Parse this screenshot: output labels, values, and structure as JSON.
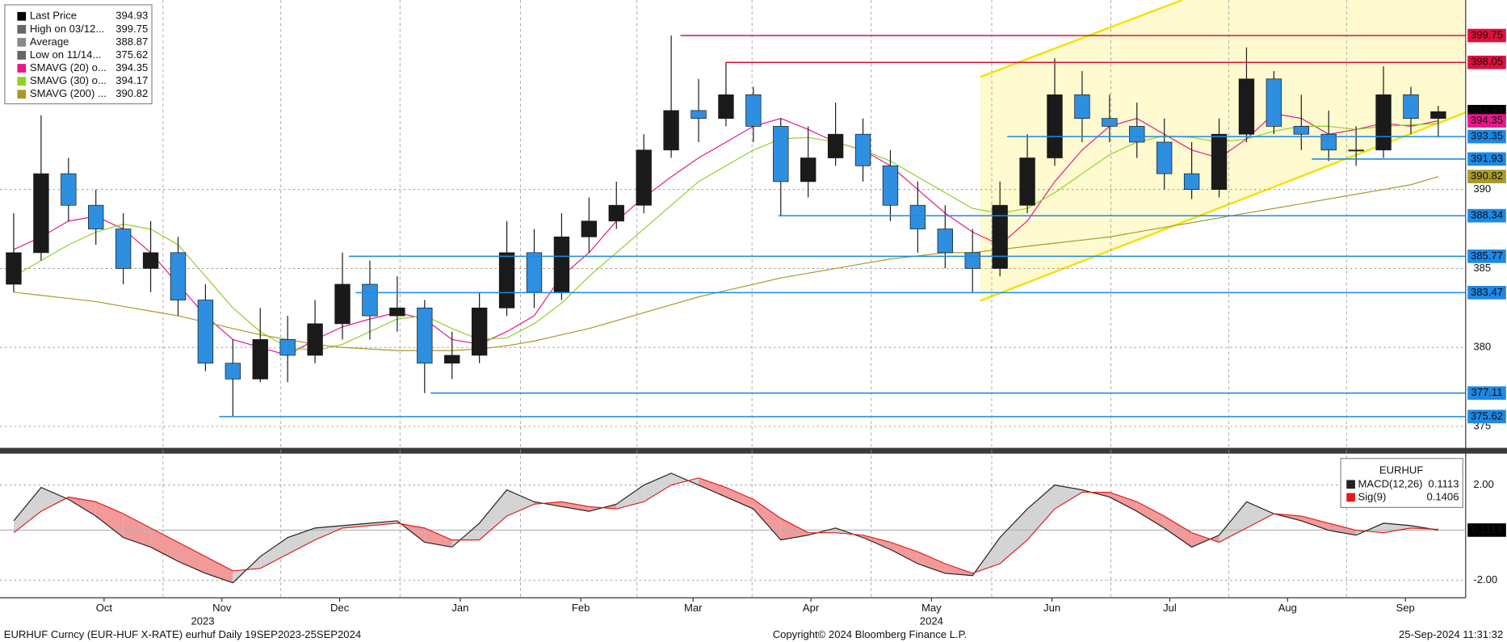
{
  "chart_data": [
    {
      "type": "candlestick",
      "open": [
        384,
        386,
        391,
        389,
        387.5,
        385,
        386,
        383,
        379,
        378,
        380.5,
        379.5,
        381.5,
        384,
        382,
        382.5,
        379,
        379.5,
        382.5,
        386,
        383.5,
        387,
        388,
        389,
        392.5,
        395,
        394.5,
        396,
        394,
        390.5,
        392,
        393.5,
        391.5,
        389,
        387.5,
        386,
        385,
        389,
        392,
        396,
        394.5,
        394,
        393,
        391,
        390,
        393.5,
        397,
        394,
        393.5,
        392.5,
        392.5,
        396,
        394.5
      ],
      "high": [
        388.5,
        394.7,
        392,
        390,
        388.5,
        388,
        387,
        384,
        380.5,
        382.5,
        382,
        383,
        386,
        385.5,
        384.5,
        383,
        381,
        383.5,
        388,
        387.5,
        388.5,
        389.5,
        390.5,
        393.5,
        399.75,
        397,
        398.05,
        396.5,
        394.5,
        394,
        395.5,
        394.5,
        392.5,
        390.5,
        389,
        387.5,
        390.5,
        393.5,
        398.3,
        397.5,
        396,
        395.5,
        394.5,
        393,
        394.5,
        399,
        397.5,
        396,
        395,
        394,
        397.8,
        396.5,
        395.3
      ],
      "low": [
        383.5,
        385.5,
        388,
        386.5,
        384,
        383.5,
        382,
        378.5,
        375.62,
        377.8,
        377.8,
        379,
        380.5,
        380.5,
        381,
        377.11,
        378,
        379,
        382,
        382.5,
        383,
        386,
        387.5,
        388.5,
        392,
        393,
        394,
        393,
        388.34,
        389.5,
        391.5,
        390.5,
        388,
        386,
        385,
        383.47,
        384.5,
        388.5,
        391.5,
        393,
        393,
        392,
        390,
        389.4,
        389.5,
        393,
        393.5,
        392.5,
        391.8,
        391.5,
        392,
        393.5,
        393.3
      ],
      "close": [
        386,
        391,
        389,
        387.5,
        385,
        386,
        383,
        379,
        378,
        380.5,
        379.5,
        381.5,
        384,
        382,
        382.5,
        379,
        379.5,
        382.5,
        386,
        383.5,
        387,
        388,
        389,
        392.5,
        395,
        394.5,
        396,
        394,
        390.5,
        392,
        393.5,
        391.5,
        389,
        387.5,
        386,
        385,
        389,
        392,
        396,
        394.5,
        394,
        393,
        391,
        390,
        393.5,
        397,
        394,
        393.5,
        392.5,
        392.5,
        396,
        394.5,
        394.93
      ],
      "up_color": "#1a1a1a",
      "down_color": "#2e8fe0",
      "series": [
        {
          "color": "#e8178a",
          "values": [
            386.2,
            387,
            388,
            388.3,
            387.5,
            386,
            384,
            382,
            380.5,
            380,
            379.5,
            380.5,
            381.3,
            381.8,
            382.2,
            381.8,
            380.5,
            380.2,
            381,
            382,
            384.5,
            386,
            388,
            389.5,
            390.8,
            392,
            393,
            394,
            394.5,
            393.8,
            393,
            392.5,
            391.5,
            390,
            388.5,
            387.3,
            386.5,
            388,
            390.5,
            392.5,
            394,
            394.5,
            393.5,
            392.5,
            392,
            393.2,
            394.8,
            394.5,
            393.5,
            393.8,
            394.2,
            394,
            394.35
          ]
        },
        {
          "color": "#8fd12a",
          "values": [
            384.5,
            385.5,
            386.5,
            387.3,
            387.8,
            387.5,
            386.5,
            384.5,
            382.5,
            381,
            380,
            379.8,
            380.2,
            381,
            381.8,
            382,
            381.2,
            380.5,
            380.6,
            381.5,
            382.8,
            384.5,
            386,
            387.5,
            389,
            390.5,
            391.5,
            392.5,
            393.2,
            393.3,
            393,
            392.5,
            391.8,
            390.8,
            389.8,
            388.8,
            388.5,
            388.8,
            389.8,
            391,
            392.2,
            393,
            393.4,
            393.3,
            393,
            393.2,
            393.7,
            394,
            394,
            393.8,
            394,
            394.1,
            394.17
          ]
        },
        {
          "color": "#a89a2a",
          "values": [
            383.5,
            383.3,
            383.1,
            382.9,
            382.6,
            382.3,
            382,
            381.6,
            381.2,
            380.8,
            380.5,
            380.2,
            380,
            379.9,
            379.8,
            379.8,
            379.8,
            379.9,
            380.1,
            380.4,
            380.8,
            381.2,
            381.7,
            382.2,
            382.7,
            383.2,
            383.6,
            384,
            384.4,
            384.7,
            385,
            385.3,
            385.6,
            385.8,
            386,
            386,
            386.2,
            386.4,
            386.6,
            386.8,
            387,
            387.3,
            387.6,
            387.9,
            388.2,
            388.5,
            388.8,
            389.1,
            389.4,
            389.7,
            390,
            390.3,
            390.82
          ]
        }
      ],
      "legend": [
        {
          "label": "Last Price",
          "value": 394.93,
          "color": "#000000"
        },
        {
          "label": "High on 03/12...",
          "value": 399.75,
          "color": "#666666"
        },
        {
          "label": "Average",
          "value": 388.87,
          "color": "#888888"
        },
        {
          "label": "Low on 11/14...",
          "value": 375.62,
          "color": "#666666"
        },
        {
          "label": "SMAVG (20)  o...",
          "value": 394.35,
          "color": "#e8178a"
        },
        {
          "label": "SMAVG (30)  o...",
          "value": 394.17,
          "color": "#8fd12a"
        },
        {
          "label": "SMAVG (200)  ...",
          "value": 390.82,
          "color": "#a89a2a"
        }
      ],
      "levels": [
        {
          "value": 399.75,
          "color": "#e0103a"
        },
        {
          "value": 398.05,
          "color": "#e0103a"
        },
        {
          "value": 394.93,
          "color": "#000000"
        },
        {
          "value": 394.35,
          "color": "#e8178a"
        },
        {
          "value": 393.35,
          "color": "#1e88e5"
        },
        {
          "value": 391.93,
          "color": "#1e88e5"
        },
        {
          "value": 390.82,
          "color": "#a89a2a"
        },
        {
          "value": 388.34,
          "color": "#1e88e5"
        },
        {
          "value": 385.77,
          "color": "#1e88e5"
        },
        {
          "value": 383.47,
          "color": "#1e88e5"
        },
        {
          "value": 377.11,
          "color": "#1e88e5"
        },
        {
          "value": 375.62,
          "color": "#1e88e5"
        }
      ],
      "xlim": [
        -0.5,
        53
      ],
      "ylim": [
        373.7,
        402
      ],
      "yticks": [
        375,
        380,
        385,
        390
      ],
      "xticks": [
        {
          "value": 3.3,
          "label": "Oct"
        },
        {
          "value": 7.6,
          "label": "Nov"
        },
        {
          "value": 11.9,
          "label": "Dec"
        },
        {
          "value": 16.3,
          "label": "Jan"
        },
        {
          "value": 20.7,
          "label": "Feb"
        },
        {
          "value": 24.8,
          "label": "Mar"
        },
        {
          "value": 29.1,
          "label": "Apr"
        },
        {
          "value": 33.5,
          "label": "May"
        },
        {
          "value": 37.9,
          "label": "Jun"
        },
        {
          "value": 42.2,
          "label": "Jul"
        },
        {
          "value": 46.5,
          "label": "Aug"
        },
        {
          "value": 50.8,
          "label": "Sep"
        }
      ],
      "year_labels": [
        {
          "value": 6.9,
          "label": "2023"
        },
        {
          "value": 33.5,
          "label": "2024"
        }
      ],
      "grid": true
    },
    {
      "type": "line",
      "title": "EURHUF",
      "series": [
        {
          "name": "MACD(12,26)",
          "color": "#222222",
          "last": 0.1113,
          "values": [
            0.5,
            1.9,
            1.4,
            0.7,
            -0.2,
            -0.6,
            -1.2,
            -1.7,
            -2.1,
            -1.0,
            -0.2,
            0.2,
            0.3,
            0.4,
            0.5,
            -0.4,
            -0.6,
            0.4,
            1.8,
            1.3,
            1.1,
            0.9,
            1.2,
            2.0,
            2.5,
            2.0,
            1.5,
            1.0,
            -0.3,
            -0.1,
            0.2,
            -0.2,
            -0.7,
            -1.3,
            -1.7,
            -1.8,
            -0.2,
            1.0,
            2.0,
            1.8,
            1.5,
            0.9,
            0.2,
            -0.6,
            -0.1,
            1.3,
            0.8,
            0.5,
            0.1,
            -0.1,
            0.4,
            0.3,
            0.1113
          ]
        },
        {
          "name": "Sig(9)",
          "color": "#e31b1b",
          "last": 0.1406,
          "values": [
            0.0,
            0.9,
            1.5,
            1.3,
            0.8,
            0.2,
            -0.4,
            -1.0,
            -1.6,
            -1.5,
            -0.9,
            -0.3,
            0.2,
            0.3,
            0.4,
            0.2,
            -0.3,
            -0.3,
            0.7,
            1.2,
            1.3,
            1.1,
            1.0,
            1.3,
            2.0,
            2.3,
            1.9,
            1.4,
            0.6,
            0.0,
            0.0,
            -0.1,
            -0.4,
            -0.8,
            -1.3,
            -1.7,
            -1.3,
            -0.3,
            1.0,
            1.7,
            1.7,
            1.3,
            0.7,
            0.0,
            -0.4,
            0.2,
            0.8,
            0.7,
            0.4,
            0.1,
            0.0,
            0.2,
            0.1406
          ]
        }
      ],
      "fill_up": "#d4d4d4",
      "fill_down": "#f29a9a",
      "ylim": [
        -2.65,
        3.2
      ],
      "yticks": [
        {
          "value": 2,
          "label": "2.00"
        },
        {
          "value": -2,
          "label": "-2.00"
        }
      ]
    }
  ],
  "footer": {
    "left": "EURHUF Curncy (EUR-HUF X-RATE) eurhuf  Daily 19SEP2023-25SEP2024",
    "center": "Copyright© 2024 Bloomberg Finance L.P.",
    "right": "25-Sep-2024 11:31:32"
  }
}
